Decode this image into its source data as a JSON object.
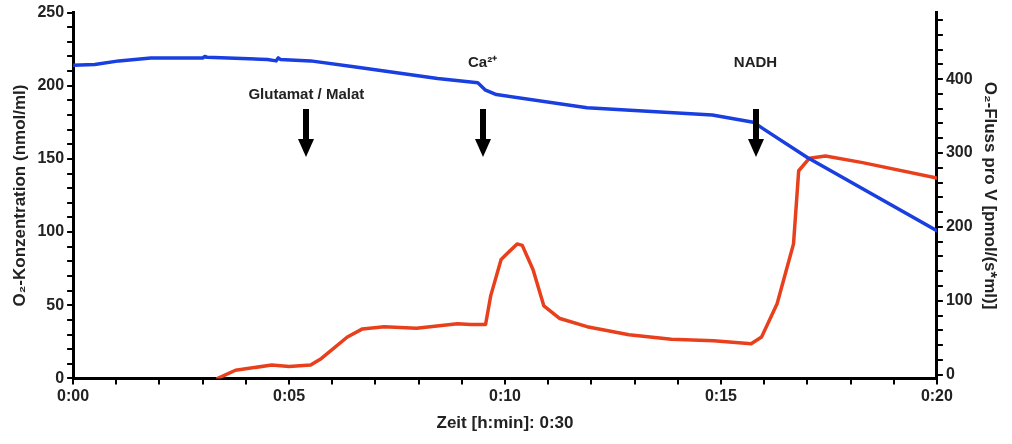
{
  "chart_data": {
    "type": "line",
    "xlabel": "Zeit [h:min]: 0:30",
    "ylabel": "O₂-Konzentration (nmol/ml)",
    "y2label": "O₂-Fluss pro V [pmol/(s*ml)]",
    "xlim": [
      0,
      20
    ],
    "xticks": [
      {
        "value": 0,
        "label": "0:00"
      },
      {
        "value": 1,
        "label": null
      },
      {
        "value": 2,
        "label": null
      },
      {
        "value": 3,
        "label": null
      },
      {
        "value": 4,
        "label": null
      },
      {
        "value": 5,
        "label": "0:05"
      },
      {
        "value": 6,
        "label": null
      },
      {
        "value": 7,
        "label": null
      },
      {
        "value": 8,
        "label": null
      },
      {
        "value": 9,
        "label": null
      },
      {
        "value": 10,
        "label": "0:10"
      },
      {
        "value": 11,
        "label": null
      },
      {
        "value": 12,
        "label": null
      },
      {
        "value": 13,
        "label": null
      },
      {
        "value": 14,
        "label": null
      },
      {
        "value": 15,
        "label": "0:15"
      },
      {
        "value": 16,
        "label": null
      },
      {
        "value": 17,
        "label": null
      },
      {
        "value": 18,
        "label": null
      },
      {
        "value": 19,
        "label": null
      },
      {
        "value": 20,
        "label": "0:20"
      }
    ],
    "ylim": [
      0,
      250
    ],
    "yticks": [
      0,
      {
        "value": 10,
        "label": null
      },
      {
        "value": 20,
        "label": null
      },
      {
        "value": 30,
        "label": null
      },
      {
        "value": 40,
        "label": null
      },
      50,
      {
        "value": 60,
        "label": null
      },
      {
        "value": 70,
        "label": null
      },
      {
        "value": 80,
        "label": null
      },
      {
        "value": 90,
        "label": null
      },
      100,
      {
        "value": 110,
        "label": null
      },
      {
        "value": 120,
        "label": null
      },
      {
        "value": 130,
        "label": null
      },
      {
        "value": 140,
        "label": null
      },
      150,
      {
        "value": 160,
        "label": null
      },
      {
        "value": 170,
        "label": null
      },
      {
        "value": 180,
        "label": null
      },
      {
        "value": 190,
        "label": null
      },
      200,
      {
        "value": 210,
        "label": null
      },
      {
        "value": 220,
        "label": null
      },
      {
        "value": 230,
        "label": null
      },
      {
        "value": 240,
        "label": null
      },
      250
    ],
    "y2lim": [
      -5,
      490
    ],
    "y2ticks": [
      0,
      {
        "value": 20,
        "label": null
      },
      {
        "value": 40,
        "label": null
      },
      {
        "value": 60,
        "label": null
      },
      {
        "value": 80,
        "label": null
      },
      100,
      {
        "value": 120,
        "label": null
      },
      {
        "value": 140,
        "label": null
      },
      {
        "value": 160,
        "label": null
      },
      {
        "value": 180,
        "label": null
      },
      200,
      {
        "value": 220,
        "label": null
      },
      {
        "value": 240,
        "label": null
      },
      {
        "value": 260,
        "label": null
      },
      {
        "value": 280,
        "label": null
      },
      300,
      {
        "value": 320,
        "label": null
      },
      {
        "value": 340,
        "label": null
      },
      {
        "value": 360,
        "label": null
      },
      {
        "value": 380,
        "label": null
      },
      400,
      {
        "value": 420,
        "label": null
      },
      {
        "value": 440,
        "label": null
      },
      {
        "value": 460,
        "label": null
      },
      {
        "value": 480,
        "label": null
      }
    ],
    "grid": false,
    "legend": false,
    "marker": "none",
    "line_style": "solid",
    "annotations": [
      "Glutamat / Malat",
      "Ca²⁺",
      "NADH"
    ],
    "series": [
      {
        "color": "#1a3fe0",
        "x": [
          0,
          0.5,
          1.06,
          1.8,
          3.0,
          3.05,
          3.1,
          4.5,
          4.7,
          4.75,
          4.8,
          5.5,
          6.5,
          7.45,
          8.44,
          9.37,
          9.55,
          9.8,
          11.9,
          14.8,
          15.75,
          17.0,
          20
        ],
        "values": [
          214,
          214.6,
          217,
          219,
          219,
          220,
          219.5,
          218,
          217,
          219,
          218,
          217,
          213,
          209,
          205,
          202,
          197,
          194,
          185,
          180,
          175,
          151,
          101
        ]
      },
      {
        "color": "#e8401c",
        "axis": "y2",
        "x": [
          3.35,
          3.76,
          4.6,
          5.0,
          5.5,
          5.75,
          6.35,
          6.7,
          7.2,
          7.95,
          8.9,
          9.2,
          9.55,
          9.67,
          9.91,
          10.28,
          10.4,
          10.65,
          10.9,
          11.27,
          11.9,
          12.87,
          13.85,
          14.83,
          15.7,
          15.94,
          16.3,
          16.68,
          16.8,
          17.05,
          17.42,
          18.28,
          20
        ],
        "values": [
          -5,
          6,
          13,
          11,
          13,
          22,
          51,
          62,
          65,
          63,
          69,
          68,
          68,
          107,
          156,
          177,
          175,
          142,
          93,
          76,
          65,
          54,
          48,
          46,
          42,
          51,
          96,
          177,
          276,
          293,
          296,
          287,
          266
        ]
      }
    ]
  }
}
